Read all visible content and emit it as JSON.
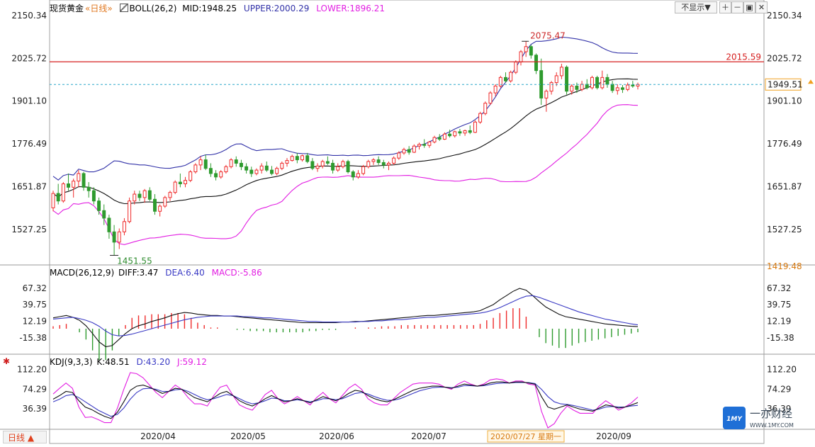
{
  "header": {
    "instrument": "现货黄金",
    "period": "«日线»",
    "boll": {
      "label": "BOLL(26,2)",
      "mid": "MID:1948.25",
      "upper": "UPPER:2000.29",
      "lower": "LOWER:1896.21"
    },
    "hide_button": "不显示▼"
  },
  "macd_legend": {
    "label": "MACD(26,12,9)",
    "diff": "DIFF:3.47",
    "dea": "DEA:6.40",
    "macd": "MACD:-5.86"
  },
  "kdj_legend": {
    "label": "KDJ(9,3,3)",
    "k": "K:48.51",
    "d": "D:43.20",
    "j": "J:59.12"
  },
  "footer": {
    "period_tab": "日线 ▲",
    "date_cursor": "2020/07/27 星期一"
  },
  "watermark": {
    "brand": "一亦财经",
    "url": "WWW.1MY.COM",
    "logo_text": "1MY"
  },
  "colors": {
    "up": "#ef2b2b",
    "down": "#2e9b2e",
    "boll_upper": "#3232a8",
    "boll_mid": "#111111",
    "boll_lower": "#e21ee2",
    "resistance": "#d62020",
    "price_line": "#2aa7c9",
    "diff": "#111111",
    "dea": "#3a3ac4",
    "kdj_k": "#111111",
    "kdj_d": "#3a3ac4",
    "kdj_j": "#e21ee2"
  },
  "chart_data": [
    {
      "type": "candlestick",
      "name": "现货黄金 日线",
      "y_ticks": [
        "2150.34",
        "2025.72",
        "1901.10",
        "1776.49",
        "1651.87",
        "1527.25"
      ],
      "ylim": [
        1419.48,
        2150.34
      ],
      "axis_bottom_label": "1419.48",
      "x_labels": [
        "2020/04",
        "2020/05",
        "2020/06",
        "2020/07",
        "2020/08",
        "2020/09"
      ],
      "annotations": {
        "high": {
          "label": "2075.47",
          "value": 2075.47
        },
        "low": {
          "label": "1451.55",
          "value": 1451.55
        },
        "resistance": {
          "label": "2015.59",
          "value": 2015.59
        },
        "last_price": {
          "label": "1949.51",
          "value": 1949.51
        }
      },
      "ohlc": [
        [
          1590,
          1640,
          1580,
          1632
        ],
        [
          1632,
          1660,
          1600,
          1610
        ],
        [
          1610,
          1665,
          1605,
          1660
        ],
        [
          1660,
          1690,
          1640,
          1650
        ],
        [
          1650,
          1675,
          1620,
          1668
        ],
        [
          1668,
          1700,
          1650,
          1690
        ],
        [
          1690,
          1695,
          1640,
          1650
        ],
        [
          1650,
          1665,
          1620,
          1640
        ],
        [
          1640,
          1650,
          1600,
          1610
        ],
        [
          1610,
          1620,
          1570,
          1582
        ],
        [
          1582,
          1600,
          1540,
          1560
        ],
        [
          1560,
          1570,
          1500,
          1520
        ],
        [
          1520,
          1540,
          1451.55,
          1490
        ],
        [
          1490,
          1530,
          1470,
          1520
        ],
        [
          1520,
          1560,
          1510,
          1550
        ],
        [
          1550,
          1620,
          1545,
          1610
        ],
        [
          1610,
          1640,
          1600,
          1630
        ],
        [
          1630,
          1640,
          1610,
          1620
        ],
        [
          1620,
          1645,
          1605,
          1640
        ],
        [
          1640,
          1650,
          1610,
          1615
        ],
        [
          1615,
          1630,
          1570,
          1580
        ],
        [
          1580,
          1600,
          1565,
          1595
        ],
        [
          1595,
          1625,
          1590,
          1620
        ],
        [
          1620,
          1640,
          1610,
          1635
        ],
        [
          1635,
          1670,
          1630,
          1665
        ],
        [
          1665,
          1690,
          1650,
          1660
        ],
        [
          1660,
          1680,
          1650,
          1670
        ],
        [
          1670,
          1700,
          1665,
          1695
        ],
        [
          1695,
          1720,
          1690,
          1715
        ],
        [
          1715,
          1740,
          1700,
          1730
        ],
        [
          1730,
          1745,
          1700,
          1705
        ],
        [
          1705,
          1720,
          1680,
          1690
        ],
        [
          1690,
          1700,
          1670,
          1680
        ],
        [
          1680,
          1700,
          1675,
          1695
        ],
        [
          1695,
          1715,
          1690,
          1710
        ],
        [
          1710,
          1735,
          1705,
          1730
        ],
        [
          1730,
          1740,
          1710,
          1720
        ],
        [
          1720,
          1730,
          1700,
          1710
        ],
        [
          1710,
          1720,
          1690,
          1700
        ],
        [
          1700,
          1710,
          1680,
          1690
        ],
        [
          1690,
          1705,
          1685,
          1700
        ],
        [
          1700,
          1720,
          1690,
          1712
        ],
        [
          1712,
          1725,
          1695,
          1700
        ],
        [
          1700,
          1712,
          1685,
          1690
        ],
        [
          1690,
          1710,
          1685,
          1705
        ],
        [
          1705,
          1725,
          1700,
          1720
        ],
        [
          1720,
          1735,
          1710,
          1728
        ],
        [
          1728,
          1745,
          1725,
          1740
        ],
        [
          1740,
          1750,
          1720,
          1730
        ],
        [
          1730,
          1745,
          1725,
          1742
        ],
        [
          1742,
          1750,
          1720,
          1725
        ],
        [
          1725,
          1735,
          1700,
          1705
        ],
        [
          1705,
          1720,
          1695,
          1712
        ],
        [
          1712,
          1730,
          1705,
          1725
        ],
        [
          1725,
          1740,
          1715,
          1720
        ],
        [
          1720,
          1730,
          1690,
          1700
        ],
        [
          1700,
          1720,
          1695,
          1710
        ],
        [
          1710,
          1730,
          1705,
          1725
        ],
        [
          1725,
          1730,
          1690,
          1695
        ],
        [
          1695,
          1700,
          1670,
          1680
        ],
        [
          1680,
          1700,
          1675,
          1690
        ],
        [
          1690,
          1715,
          1685,
          1710
        ],
        [
          1710,
          1730,
          1705,
          1725
        ],
        [
          1725,
          1735,
          1715,
          1730
        ],
        [
          1730,
          1740,
          1715,
          1722
        ],
        [
          1722,
          1730,
          1705,
          1715
        ],
        [
          1715,
          1725,
          1700,
          1720
        ],
        [
          1720,
          1740,
          1715,
          1735
        ],
        [
          1735,
          1755,
          1730,
          1750
        ],
        [
          1750,
          1765,
          1745,
          1760
        ],
        [
          1760,
          1770,
          1745,
          1752
        ],
        [
          1752,
          1775,
          1750,
          1770
        ],
        [
          1770,
          1780,
          1760,
          1775
        ],
        [
          1775,
          1790,
          1765,
          1772
        ],
        [
          1772,
          1785,
          1765,
          1782
        ],
        [
          1782,
          1800,
          1778,
          1795
        ],
        [
          1795,
          1805,
          1785,
          1790
        ],
        [
          1790,
          1810,
          1788,
          1805
        ],
        [
          1805,
          1818,
          1795,
          1800
        ],
        [
          1800,
          1815,
          1795,
          1812
        ],
        [
          1812,
          1820,
          1800,
          1808
        ],
        [
          1808,
          1818,
          1800,
          1815
        ],
        [
          1815,
          1830,
          1805,
          1810
        ],
        [
          1810,
          1845,
          1808,
          1840
        ],
        [
          1840,
          1870,
          1835,
          1865
        ],
        [
          1865,
          1900,
          1860,
          1895
        ],
        [
          1895,
          1930,
          1890,
          1925
        ],
        [
          1925,
          1950,
          1915,
          1945
        ],
        [
          1945,
          1975,
          1940,
          1970
        ],
        [
          1970,
          1985,
          1955,
          1960
        ],
        [
          1960,
          1990,
          1955,
          1985
        ],
        [
          1985,
          2020,
          1980,
          2015
        ],
        [
          2015,
          2050,
          2005,
          2045
        ],
        [
          2045,
          2075.47,
          2030,
          2060
        ],
        [
          2060,
          2065,
          2025,
          2035
        ],
        [
          2035,
          2040,
          1980,
          1990
        ],
        [
          1990,
          2025,
          1890,
          1910
        ],
        [
          1910,
          1935,
          1870,
          1930
        ],
        [
          1930,
          1960,
          1920,
          1955
        ],
        [
          1955,
          1985,
          1945,
          1975
        ],
        [
          1975,
          2010,
          1965,
          2000
        ],
        [
          2000,
          2005,
          1920,
          1930
        ],
        [
          1930,
          1950,
          1920,
          1945
        ],
        [
          1945,
          1955,
          1925,
          1935
        ],
        [
          1935,
          1960,
          1930,
          1950
        ],
        [
          1950,
          1965,
          1935,
          1940
        ],
        [
          1940,
          1975,
          1935,
          1970
        ],
        [
          1970,
          1975,
          1935,
          1940
        ],
        [
          1940,
          1990,
          1935,
          1970
        ],
        [
          1970,
          1980,
          1940,
          1950
        ],
        [
          1950,
          1960,
          1925,
          1932
        ],
        [
          1932,
          1950,
          1920,
          1940
        ],
        [
          1940,
          1948,
          1925,
          1935
        ],
        [
          1935,
          1955,
          1930,
          1948
        ],
        [
          1948,
          1960,
          1940,
          1945
        ],
        [
          1945,
          1955,
          1935,
          1949.51
        ]
      ],
      "boll": {
        "upper_last": 2000.29,
        "mid_last": 1948.25,
        "lower_last": 1896.21
      }
    },
    {
      "type": "macd",
      "name": "MACD(26,12,9)",
      "y_ticks": [
        "67.32",
        "39.75",
        "12.19",
        "-15.38"
      ],
      "ylim": [
        -40,
        80
      ],
      "diff": [
        18,
        20,
        22,
        19,
        14,
        5,
        -8,
        -22,
        -30,
        -28,
        -18,
        -8,
        0,
        5,
        8,
        12,
        15,
        18,
        22,
        25,
        27,
        26,
        24,
        23,
        22,
        22,
        21,
        21,
        20,
        19,
        18,
        17,
        16,
        15,
        14,
        13,
        12,
        11,
        10,
        10,
        10,
        10,
        10,
        10,
        11,
        11,
        12,
        12,
        13,
        14,
        15,
        16,
        17,
        18,
        19,
        20,
        21,
        22,
        22,
        23,
        24,
        25,
        26,
        27,
        28,
        30,
        35,
        40,
        48,
        55,
        62,
        67,
        64,
        55,
        45,
        36,
        30,
        24,
        20,
        18,
        16,
        14,
        12,
        10,
        8,
        7,
        6,
        5,
        4,
        3.47
      ],
      "dea": [
        16,
        17,
        18,
        19,
        17,
        14,
        10,
        4,
        -4,
        -10,
        -12,
        -11,
        -9,
        -6,
        -3,
        0,
        3,
        6,
        9,
        12,
        15,
        17,
        19,
        20,
        21,
        21,
        21,
        21,
        21,
        20,
        20,
        19,
        18,
        18,
        17,
        16,
        15,
        14,
        13,
        12,
        12,
        11,
        11,
        11,
        11,
        11,
        11,
        12,
        12,
        13,
        13,
        14,
        15,
        15,
        16,
        17,
        18,
        19,
        19,
        20,
        21,
        22,
        23,
        24,
        25,
        26,
        28,
        31,
        35,
        40,
        45,
        50,
        54,
        55,
        52,
        48,
        44,
        40,
        36,
        32,
        28,
        25,
        22,
        19,
        16,
        14,
        12,
        10,
        8,
        6.4
      ],
      "macd": [
        4,
        6,
        8,
        0,
        -6,
        -18,
        -36,
        -52,
        -52,
        -36,
        -12,
        6,
        18,
        22,
        22,
        24,
        24,
        24,
        26,
        26,
        24,
        18,
        10,
        6,
        2,
        2,
        0,
        0,
        -2,
        -2,
        -4,
        -4,
        -4,
        -6,
        -6,
        -6,
        -6,
        -6,
        -6,
        -4,
        -4,
        -2,
        -2,
        -2,
        0,
        0,
        2,
        0,
        2,
        2,
        4,
        4,
        4,
        6,
        6,
        6,
        6,
        6,
        6,
        6,
        6,
        6,
        6,
        6,
        6,
        8,
        14,
        18,
        26,
        30,
        34,
        34,
        20,
        0,
        -14,
        -24,
        -28,
        -32,
        -32,
        -28,
        -24,
        -22,
        -20,
        -18,
        -16,
        -14,
        -12,
        -10,
        -8,
        -5.86
      ]
    },
    {
      "type": "kdj",
      "name": "KDJ(9,3,3)",
      "y_ticks": [
        "112.20",
        "74.29",
        "36.39"
      ],
      "ylim": [
        0,
        125
      ],
      "k": [
        55,
        62,
        70,
        68,
        52,
        40,
        35,
        28,
        22,
        18,
        30,
        50,
        72,
        80,
        82,
        78,
        72,
        66,
        70,
        76,
        74,
        66,
        58,
        54,
        50,
        58,
        66,
        70,
        62,
        52,
        46,
        42,
        48,
        56,
        62,
        56,
        50,
        52,
        56,
        52,
        48,
        54,
        60,
        56,
        52,
        58,
        66,
        72,
        70,
        62,
        56,
        52,
        50,
        54,
        60,
        66,
        72,
        76,
        78,
        80,
        80,
        78,
        76,
        80,
        84,
        82,
        80,
        82,
        86,
        88,
        88,
        86,
        88,
        88,
        86,
        84,
        60,
        40,
        36,
        40,
        44,
        40,
        36,
        34,
        32,
        38,
        44,
        42,
        38,
        40,
        44,
        48.51
      ],
      "d": [
        50,
        55,
        62,
        64,
        58,
        50,
        42,
        34,
        28,
        22,
        26,
        38,
        55,
        68,
        75,
        76,
        74,
        70,
        70,
        73,
        74,
        70,
        64,
        58,
        54,
        56,
        60,
        64,
        62,
        56,
        50,
        46,
        48,
        52,
        57,
        56,
        52,
        52,
        54,
        52,
        50,
        52,
        56,
        56,
        54,
        56,
        61,
        66,
        68,
        65,
        60,
        56,
        53,
        53,
        56,
        61,
        66,
        71,
        74,
        77,
        78,
        78,
        77,
        78,
        81,
        81,
        80,
        81,
        83,
        85,
        86,
        86,
        87,
        87,
        87,
        85,
        74,
        60,
        50,
        46,
        45,
        43,
        40,
        37,
        34,
        36,
        40,
        41,
        40,
        40,
        42,
        43.2
      ],
      "j": [
        65,
        76,
        86,
        76,
        40,
        20,
        21,
        16,
        10,
        10,
        38,
        74,
        106,
        104,
        96,
        82,
        68,
        58,
        70,
        82,
        74,
        58,
        46,
        46,
        42,
        62,
        78,
        82,
        62,
        44,
        38,
        34,
        48,
        64,
        72,
        56,
        46,
        52,
        60,
        52,
        44,
        58,
        68,
        56,
        48,
        62,
        76,
        84,
        74,
        56,
        48,
        44,
        44,
        56,
        68,
        76,
        84,
        86,
        86,
        86,
        84,
        78,
        74,
        84,
        90,
        84,
        80,
        84,
        92,
        94,
        92,
        86,
        90,
        90,
        84,
        82,
        32,
        0,
        8,
        28,
        42,
        34,
        28,
        28,
        28,
        42,
        52,
        44,
        34,
        40,
        48,
        59.12
      ]
    }
  ]
}
